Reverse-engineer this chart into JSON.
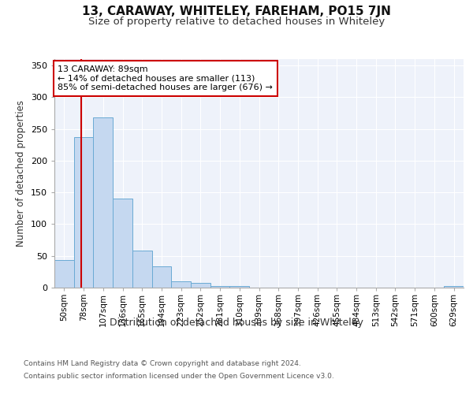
{
  "title": "13, CARAWAY, WHITELEY, FAREHAM, PO15 7JN",
  "subtitle": "Size of property relative to detached houses in Whiteley",
  "xlabel": "Distribution of detached houses by size in Whiteley",
  "ylabel": "Number of detached properties",
  "bar_color": "#c5d8f0",
  "bar_edge_color": "#6aaad4",
  "background_color": "#eef2fa",
  "grid_color": "#ffffff",
  "annotation_box_color": "#cc0000",
  "redline_color": "#cc0000",
  "annotation_text": "13 CARAWAY: 89sqm\n← 14% of detached houses are smaller (113)\n85% of semi-detached houses are larger (676) →",
  "footer_line1": "Contains HM Land Registry data © Crown copyright and database right 2024.",
  "footer_line2": "Contains public sector information licensed under the Open Government Licence v3.0.",
  "bin_labels": [
    "50sqm",
    "78sqm",
    "107sqm",
    "136sqm",
    "165sqm",
    "194sqm",
    "223sqm",
    "252sqm",
    "281sqm",
    "310sqm",
    "339sqm",
    "368sqm",
    "397sqm",
    "426sqm",
    "455sqm",
    "484sqm",
    "513sqm",
    "542sqm",
    "571sqm",
    "600sqm",
    "629sqm"
  ],
  "bar_heights": [
    44,
    237,
    268,
    140,
    58,
    33,
    10,
    7,
    3,
    3,
    0,
    0,
    0,
    0,
    0,
    0,
    0,
    0,
    0,
    0,
    3
  ],
  "ylim": [
    0,
    360
  ],
  "yticks": [
    0,
    50,
    100,
    150,
    200,
    250,
    300,
    350
  ]
}
